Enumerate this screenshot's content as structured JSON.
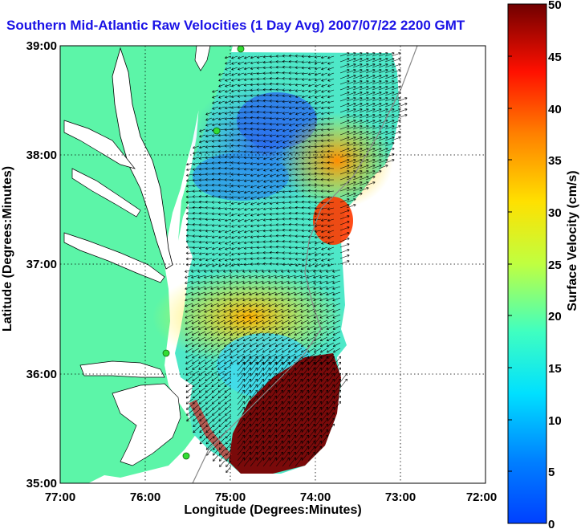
{
  "title": "Southern Mid-Atlantic Raw Velocities (1 Day Avg) 2007/07/22 2200 GMT",
  "map": {
    "xlabel": "Longitude (Degrees:Minutes)",
    "ylabel": "Latitude (Degrees:Minutes)",
    "lon_ticks": [
      "77:00",
      "76:00",
      "75:00",
      "74:00",
      "73:00",
      "72:00"
    ],
    "lat_ticks": [
      "39:00",
      "38:00",
      "37:00",
      "36:00",
      "35:00"
    ],
    "lon_range": [
      -77,
      -72
    ],
    "lat_range": [
      35,
      39
    ],
    "grid": true
  },
  "colorbar": {
    "label": "Surface Velocity (cm/s)",
    "ticks": [
      "0",
      "5",
      "10",
      "15",
      "20",
      "25",
      "30",
      "35",
      "40",
      "45",
      "50"
    ],
    "range": [
      0,
      50
    ],
    "colormap": "jet"
  },
  "colors": {
    "land": "#5cf5a8",
    "title": "#1a12e6",
    "station": "#33dd33"
  }
}
